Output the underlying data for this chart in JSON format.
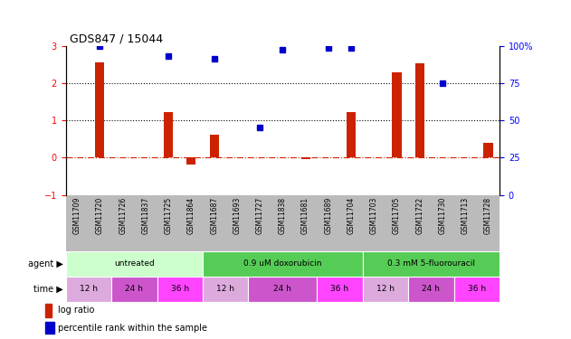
{
  "title": "GDS847 / 15044",
  "samples": [
    "GSM11709",
    "GSM11720",
    "GSM11726",
    "GSM11837",
    "GSM11725",
    "GSM11864",
    "GSM11687",
    "GSM11693",
    "GSM11727",
    "GSM11838",
    "GSM11681",
    "GSM11689",
    "GSM11704",
    "GSM11703",
    "GSM11705",
    "GSM11722",
    "GSM11730",
    "GSM11713",
    "GSM11728"
  ],
  "log_ratio": [
    0.0,
    2.55,
    0.0,
    0.0,
    1.22,
    -0.18,
    0.62,
    0.0,
    0.0,
    0.0,
    -0.05,
    0.0,
    1.22,
    0.0,
    2.28,
    2.52,
    0.0,
    0.0,
    0.4
  ],
  "percentile_left_axis": [
    null,
    3.0,
    null,
    null,
    2.72,
    null,
    2.65,
    null,
    0.82,
    2.9,
    null,
    2.95,
    2.95,
    null,
    null,
    null,
    2.0,
    null,
    null
  ],
  "ylim_left": [
    -1,
    3
  ],
  "bar_color": "#cc2200",
  "point_color": "#0000cc",
  "zero_line_color": "#cc2200",
  "agent_groups": [
    {
      "label": "untreated",
      "start": 0,
      "end": 6,
      "color": "#ccffcc"
    },
    {
      "label": "0.9 uM doxorubicin",
      "start": 6,
      "end": 13,
      "color": "#55cc55"
    },
    {
      "label": "0.3 mM 5-fluorouracil",
      "start": 13,
      "end": 19,
      "color": "#55cc55"
    }
  ],
  "time_groups": [
    {
      "label": "12 h",
      "start": 0,
      "end": 2,
      "color": "#ddaadd"
    },
    {
      "label": "24 h",
      "start": 2,
      "end": 4,
      "color": "#cc55cc"
    },
    {
      "label": "36 h",
      "start": 4,
      "end": 6,
      "color": "#ff44ff"
    },
    {
      "label": "12 h",
      "start": 6,
      "end": 8,
      "color": "#ddaadd"
    },
    {
      "label": "24 h",
      "start": 8,
      "end": 11,
      "color": "#cc55cc"
    },
    {
      "label": "36 h",
      "start": 11,
      "end": 13,
      "color": "#ff44ff"
    },
    {
      "label": "12 h",
      "start": 13,
      "end": 15,
      "color": "#ddaadd"
    },
    {
      "label": "24 h",
      "start": 15,
      "end": 17,
      "color": "#cc55cc"
    },
    {
      "label": "36 h",
      "start": 17,
      "end": 19,
      "color": "#ff44ff"
    }
  ],
  "xtick_bg": "#bbbbbb",
  "agent_label_color": "#000000",
  "time_label_color": "#000000"
}
